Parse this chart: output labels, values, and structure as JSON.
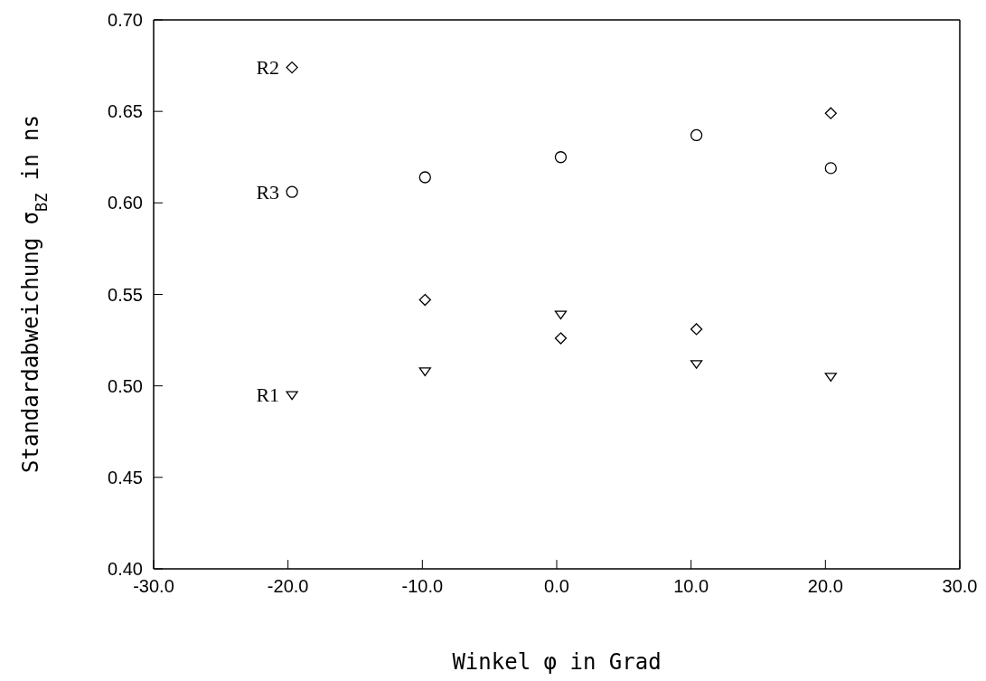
{
  "chart_data": {
    "type": "scatter",
    "xlabel": "Winkel  φ in Grad",
    "ylabel": "Standardabweichung  σ$_{BZ}$  in ns",
    "xlim": [
      -30,
      30
    ],
    "xticks": [
      {
        "value": -30,
        "label": "-30.0"
      },
      {
        "value": -20,
        "label": "-20.0"
      },
      {
        "value": -10,
        "label": "-10.0"
      },
      {
        "value": 0,
        "label": "0.0"
      },
      {
        "value": 10,
        "label": "10.0"
      },
      {
        "value": 20,
        "label": "20.0"
      },
      {
        "value": 30,
        "label": "30.0"
      }
    ],
    "ylim": [
      0.4,
      0.7
    ],
    "yticks": [
      {
        "value": 0.4,
        "label": "0.40"
      },
      {
        "value": 0.45,
        "label": "0.45"
      },
      {
        "value": 0.5,
        "label": "0.50"
      },
      {
        "value": 0.55,
        "label": "0.55"
      },
      {
        "value": 0.6,
        "label": "0.60"
      },
      {
        "value": 0.65,
        "label": "0.65"
      },
      {
        "value": 0.7,
        "label": "0.70"
      }
    ],
    "grid": false,
    "legend": false,
    "series": [
      {
        "name": "R2",
        "color": "#000000",
        "marker": "diamond",
        "x": [
          -19.7,
          -9.8,
          0.3,
          10.4,
          20.4
        ],
        "values": [
          0.674,
          0.547,
          0.526,
          0.531,
          0.649
        ]
      },
      {
        "name": "R3",
        "color": "#000000",
        "marker": "circle",
        "x": [
          -19.7,
          -9.8,
          0.3,
          10.4,
          20.4
        ],
        "values": [
          0.606,
          0.614,
          0.625,
          0.637,
          0.619
        ]
      },
      {
        "name": "R1",
        "color": "#000000",
        "marker": "triangle",
        "x": [
          -19.7,
          -9.8,
          0.3,
          10.4,
          20.4
        ],
        "values": [
          0.495,
          0.508,
          0.539,
          0.512,
          0.505
        ]
      }
    ]
  }
}
